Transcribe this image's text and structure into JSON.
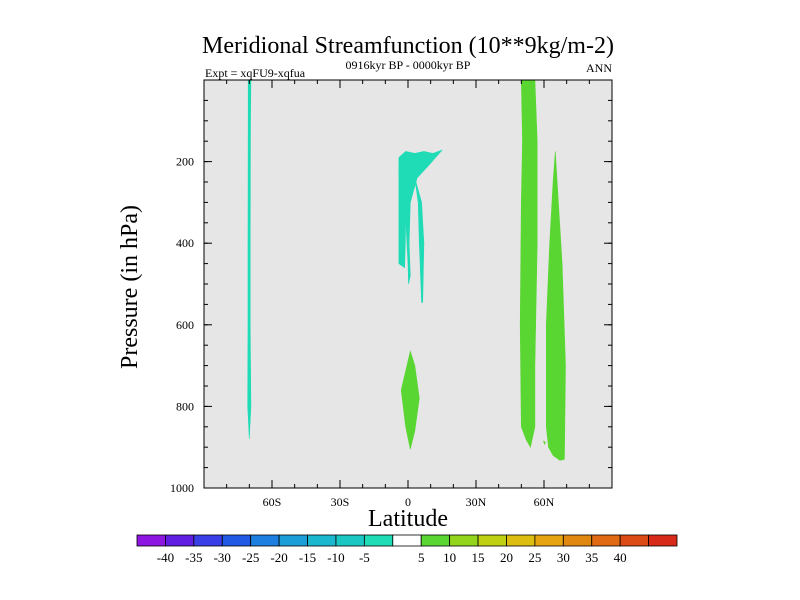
{
  "chart_data": {
    "type": "contour",
    "title": "Meridional Streamfunction (10**9kg/m-2)",
    "subtitle_left": "Expt = xqFU9-xqfua",
    "subtitle_center": "0916kyr BP - 0000kyr BP",
    "subtitle_right": "ANN",
    "xlabel": "Latitude",
    "ylabel": "Pressure (in hPa)",
    "xlim": [
      -90,
      90
    ],
    "ylim": [
      1000,
      0
    ],
    "x_ticks": [
      {
        "value": -60,
        "label": "60S"
      },
      {
        "value": -30,
        "label": "30S"
      },
      {
        "value": 0,
        "label": "0"
      },
      {
        "value": 30,
        "label": "30N"
      },
      {
        "value": 60,
        "label": "60N"
      }
    ],
    "y_ticks": [
      {
        "value": 200,
        "label": "200"
      },
      {
        "value": 400,
        "label": "400"
      },
      {
        "value": 600,
        "label": "600"
      },
      {
        "value": 800,
        "label": "800"
      },
      {
        "value": 1000,
        "label": "1000"
      }
    ],
    "background_color": "#e6e6e6",
    "regions": [
      {
        "name": "band-70S",
        "level": -5,
        "color": "#1fdcb6",
        "points": [
          [
            -70.5,
            0
          ],
          [
            -69.3,
            0
          ],
          [
            -69.5,
            100
          ],
          [
            -69.6,
            400
          ],
          [
            -69.6,
            600
          ],
          [
            -69.3,
            800
          ],
          [
            -70.0,
            880
          ],
          [
            -70.7,
            800
          ],
          [
            -70.6,
            600
          ],
          [
            -70.6,
            400
          ],
          [
            -70.5,
            100
          ]
        ]
      },
      {
        "name": "upper-equatorial",
        "level": -5,
        "color": "#1fdcb6",
        "points": [
          [
            -4,
            190
          ],
          [
            -1,
            175
          ],
          [
            3,
            180
          ],
          [
            7,
            175
          ],
          [
            11,
            180
          ],
          [
            15,
            172
          ],
          [
            9,
            210
          ],
          [
            4,
            240
          ],
          [
            1,
            300
          ],
          [
            0.5,
            400
          ],
          [
            1,
            480
          ],
          [
            0.2,
            500
          ],
          [
            0,
            450
          ],
          [
            -1,
            340
          ],
          [
            -2,
            320
          ],
          [
            -3,
            290
          ],
          [
            -4,
            230
          ]
        ]
      },
      {
        "name": "upper-equatorial-tail",
        "level": -5,
        "color": "#1fdcb6",
        "points": [
          [
            -4,
            210
          ],
          [
            -3,
            290
          ],
          [
            -1,
            330
          ],
          [
            -1.2,
            400
          ],
          [
            -1.5,
            460
          ],
          [
            -4,
            450
          ]
        ]
      },
      {
        "name": "upper-equatorial-root",
        "level": -5,
        "color": "#1fdcb6",
        "points": [
          [
            3,
            240
          ],
          [
            6,
            300
          ],
          [
            7,
            400
          ],
          [
            6.5,
            545
          ],
          [
            6,
            545
          ],
          [
            5,
            400
          ],
          [
            4.5,
            300
          ]
        ]
      },
      {
        "name": "lower-equatorial",
        "level": 5,
        "color": "#5ad632",
        "points": [
          [
            1,
            665
          ],
          [
            -3,
            760
          ],
          [
            -1,
            850
          ],
          [
            1,
            905
          ],
          [
            3,
            860
          ],
          [
            5,
            780
          ],
          [
            3,
            700
          ]
        ]
      },
      {
        "name": "band-50N",
        "level": 5,
        "color": "#5ad632",
        "points": [
          [
            50,
            0
          ],
          [
            56,
            0
          ],
          [
            57,
            150
          ],
          [
            57,
            400
          ],
          [
            56,
            700
          ],
          [
            56,
            850
          ],
          [
            54,
            900
          ],
          [
            52,
            880
          ],
          [
            50,
            850
          ],
          [
            49.5,
            600
          ],
          [
            50,
            300
          ],
          [
            50.5,
            150
          ]
        ]
      },
      {
        "name": "band-65N",
        "level": 5,
        "color": "#5ad632",
        "points": [
          [
            65,
            175
          ],
          [
            68,
            450
          ],
          [
            69.5,
            700
          ],
          [
            69,
            930
          ],
          [
            67,
            932
          ],
          [
            64,
            920
          ],
          [
            62,
            900
          ],
          [
            61,
            850
          ],
          [
            61,
            600
          ],
          [
            62.5,
            400
          ],
          [
            64,
            250
          ]
        ]
      },
      {
        "name": "speck-60N",
        "level": 5,
        "color": "#5ad632",
        "points": [
          [
            59.8,
            885
          ],
          [
            60.6,
            888
          ],
          [
            60.2,
            893
          ]
        ]
      }
    ],
    "colorbar": {
      "colors": [
        "#8d16e0",
        "#5f1ee2",
        "#3a3ee6",
        "#2159e4",
        "#1d7fe0",
        "#1c9ed9",
        "#1ab7cf",
        "#1ac7c2",
        "#1fdcb6",
        "#ffffff",
        "#5ad632",
        "#93d51d",
        "#bfcf11",
        "#dcbd10",
        "#e5a410",
        "#e18811",
        "#df6a13",
        "#dc4a16",
        "#d82a18"
      ],
      "labels": [
        "-40",
        "-35",
        "-30",
        "-25",
        "-20",
        "-15",
        "-10",
        "-5",
        "5",
        "10",
        "15",
        "20",
        "25",
        "30",
        "35",
        "40"
      ]
    }
  }
}
